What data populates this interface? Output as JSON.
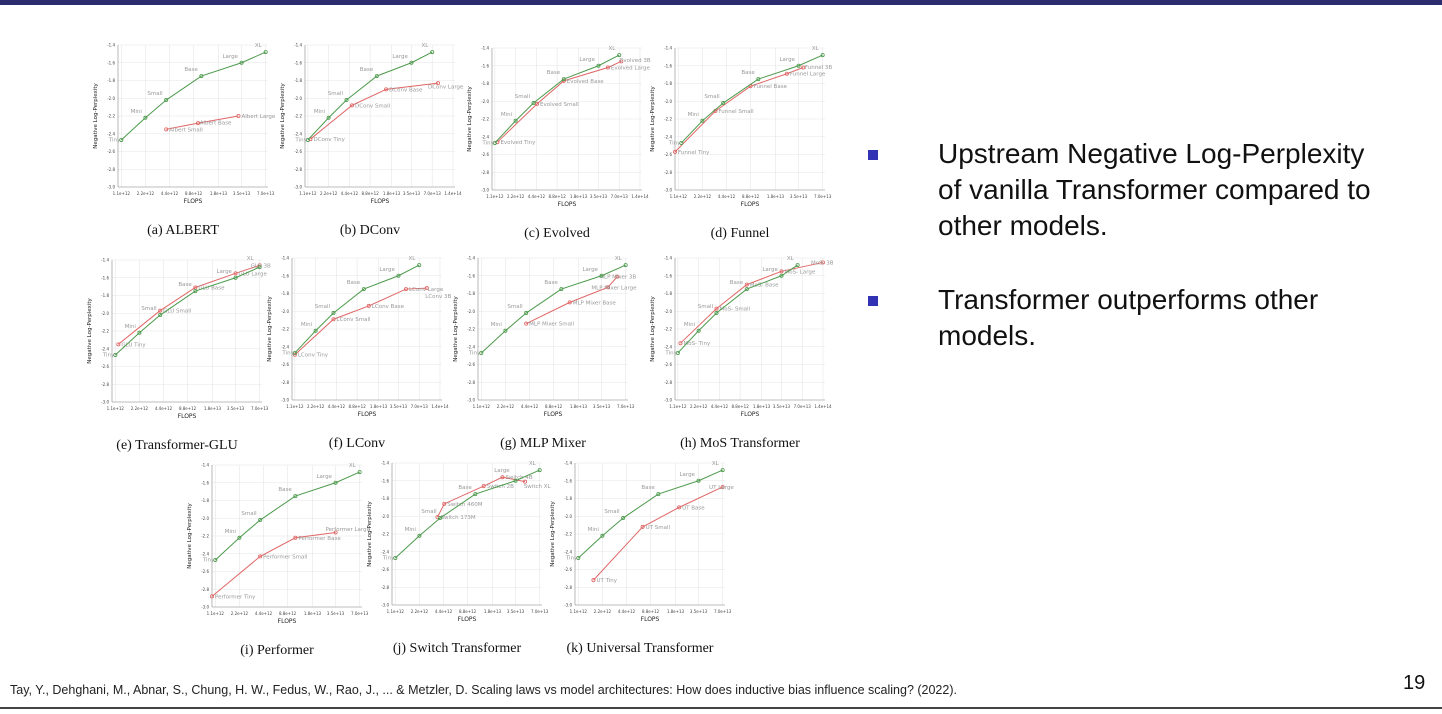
{
  "bullets": [
    "Upstream Negative Log-Perplexity of vanilla Transformer compared to other models.",
    "Transformer outperforms other models."
  ],
  "reference": "Tay, Y., Dehghani, M., Abnar, S., Chung, H. W., Fedus, W., Rao, J., ... & Metzler, D. Scaling laws vs model architectures: How does inductive bias influence scaling? (2022).",
  "page_number": "19",
  "colors": {
    "transformer": "#4c9a4c",
    "model": "#e06666",
    "accent": "#3232b4"
  },
  "chart_data": [
    {
      "type": "line",
      "caption": "(a) ALBERT",
      "xlabel": "FLOPS",
      "ylabel": "Negative Log-Perplexity",
      "ylim": [
        -3.0,
        -1.4
      ],
      "xscale": "log",
      "xticks": [
        "1.1e+12",
        "2.2e+12",
        "4.4e+12",
        "8.8e+12",
        "1.8e+13",
        "3.5e+13",
        "7.0e+13"
      ],
      "series": [
        {
          "name": "Transformer",
          "labels": [
            "Tiny",
            "Mini",
            "Small",
            "Base",
            "Large",
            "XL"
          ],
          "x": [
            1100000000000.0,
            2200000000000.0,
            4000000000000.0,
            11000000000000.0,
            35000000000000.0,
            70000000000000.0
          ],
          "y": [
            -2.47,
            -2.22,
            -2.02,
            -1.75,
            -1.6,
            -1.48
          ]
        },
        {
          "name": "ALBERT",
          "labels": [
            "Albert Small",
            "Albert Base",
            "Albert Large"
          ],
          "x": [
            4000000000000.0,
            10000000000000.0,
            32000000000000.0
          ],
          "y": [
            -2.35,
            -2.28,
            -2.2
          ]
        }
      ]
    },
    {
      "type": "line",
      "caption": "(b) DConv",
      "xlabel": "FLOPS",
      "ylabel": "Negative Log-Perplexity",
      "ylim": [
        -3.0,
        -1.4
      ],
      "xscale": "log",
      "xticks": [
        "1.1e+12",
        "2.2e+12",
        "4.4e+12",
        "8.8e+12",
        "1.8e+13",
        "3.5e+13",
        "7.0e+13",
        "1.4e+14"
      ],
      "series": [
        {
          "name": "Transformer",
          "labels": [
            "Tiny",
            "Mini",
            "Small",
            "Base",
            "Large",
            "XL"
          ],
          "x": [
            1100000000000.0,
            2200000000000.0,
            4000000000000.0,
            11000000000000.0,
            35000000000000.0,
            70000000000000.0
          ],
          "y": [
            -2.47,
            -2.22,
            -2.02,
            -1.75,
            -1.6,
            -1.48
          ]
        },
        {
          "name": "DConv",
          "labels": [
            "DConv Tiny",
            "DConv Small",
            "DConv Base",
            "DConv Large"
          ],
          "x": [
            1200000000000.0,
            4800000000000.0,
            15000000000000.0,
            85000000000000.0
          ],
          "y": [
            -2.46,
            -2.08,
            -1.9,
            -1.83
          ]
        }
      ]
    },
    {
      "type": "line",
      "caption": "(c) Evolved",
      "xlabel": "FLOPS",
      "ylabel": "Negative Log-Perplexity",
      "ylim": [
        -3.0,
        -1.4
      ],
      "xscale": "log",
      "xticks": [
        "1.1e+12",
        "2.2e+12",
        "4.4e+12",
        "8.8e+12",
        "1.8e+13",
        "3.5e+13",
        "7.0e+13",
        "1.4e+14"
      ],
      "series": [
        {
          "name": "Transformer",
          "labels": [
            "Tiny",
            "Mini",
            "Small",
            "Base",
            "Large",
            "XL"
          ],
          "x": [
            1100000000000.0,
            2200000000000.0,
            4000000000000.0,
            11000000000000.0,
            35000000000000.0,
            70000000000000.0
          ],
          "y": [
            -2.47,
            -2.22,
            -2.02,
            -1.75,
            -1.6,
            -1.48
          ]
        },
        {
          "name": "Evolved",
          "labels": [
            "Evolved Tiny",
            "Evolved Small",
            "Evolved Base",
            "Evolved Large",
            "Evolved 3B"
          ],
          "x": [
            1200000000000.0,
            4500000000000.0,
            11000000000000.0,
            48000000000000.0,
            75000000000000.0
          ],
          "y": [
            -2.46,
            -2.03,
            -1.77,
            -1.62,
            -1.55
          ]
        }
      ]
    },
    {
      "type": "line",
      "caption": "(d) Funnel",
      "xlabel": "FLOPS",
      "ylabel": "Negative Log-Perplexity",
      "ylim": [
        -3.0,
        -1.4
      ],
      "xscale": "log",
      "xticks": [
        "1.1e+12",
        "2.2e+12",
        "4.4e+12",
        "8.8e+12",
        "1.8e+13",
        "3.5e+13",
        "7.0e+13"
      ],
      "series": [
        {
          "name": "Transformer",
          "labels": [
            "Tiny",
            "Mini",
            "Small",
            "Base",
            "Large",
            "XL"
          ],
          "x": [
            1200000000000.0,
            2200000000000.0,
            4000000000000.0,
            11000000000000.0,
            35000000000000.0,
            70000000000000.0
          ],
          "y": [
            -2.47,
            -2.22,
            -2.02,
            -1.75,
            -1.6,
            -1.48
          ]
        },
        {
          "name": "Funnel",
          "labels": [
            "Funnel Tiny",
            "Funnel Small",
            "Funnel Base",
            "Funnel Large",
            "Funnel 3B"
          ],
          "x": [
            1000000000000.0,
            3200000000000.0,
            8800000000000.0,
            25000000000000.0,
            40000000000000.0
          ],
          "y": [
            -2.57,
            -2.11,
            -1.83,
            -1.69,
            -1.62
          ]
        }
      ]
    },
    {
      "type": "line",
      "caption": "(e) Transformer-GLU",
      "xlabel": "FLOPS",
      "ylabel": "Negative Log-Perplexity",
      "ylim": [
        -3.0,
        -1.4
      ],
      "xscale": "log",
      "xticks": [
        "1.1e+12",
        "2.2e+12",
        "4.4e+12",
        "8.8e+12",
        "1.8e+13",
        "3.5e+13",
        "7.0e+13"
      ],
      "series": [
        {
          "name": "Transformer",
          "labels": [
            "Tiny",
            "Mini",
            "Small",
            "Base",
            "Large",
            "XL"
          ],
          "x": [
            1100000000000.0,
            2200000000000.0,
            4000000000000.0,
            11000000000000.0,
            35000000000000.0,
            70000000000000.0
          ],
          "y": [
            -2.47,
            -2.22,
            -2.02,
            -1.75,
            -1.6,
            -1.48
          ]
        },
        {
          "name": "GLU",
          "labels": [
            "GLU Tiny",
            "GLU Small",
            "GLU Base",
            "GLU Large",
            "GLU 3B"
          ],
          "x": [
            1200000000000.0,
            4000000000000.0,
            11000000000000.0,
            35000000000000.0,
            70000000000000.0
          ],
          "y": [
            -2.35,
            -1.97,
            -1.71,
            -1.55,
            -1.46
          ]
        }
      ]
    },
    {
      "type": "line",
      "caption": "(f) LConv",
      "xlabel": "FLOPS",
      "ylabel": "Negative Log-Perplexity",
      "ylim": [
        -3.0,
        -1.4
      ],
      "xscale": "log",
      "xticks": [
        "1.1e+12",
        "2.2e+12",
        "4.4e+12",
        "8.8e+12",
        "1.8e+13",
        "3.5e+13",
        "7.0e+13",
        "1.4e+14"
      ],
      "series": [
        {
          "name": "Transformer",
          "labels": [
            "Tiny",
            "Mini",
            "Small",
            "Base",
            "Large",
            "XL"
          ],
          "x": [
            1100000000000.0,
            2200000000000.0,
            4000000000000.0,
            11000000000000.0,
            35000000000000.0,
            70000000000000.0
          ],
          "y": [
            -2.47,
            -2.22,
            -2.02,
            -1.75,
            -1.6,
            -1.48
          ]
        },
        {
          "name": "LConv",
          "labels": [
            "LConv Tiny",
            "LConv Small",
            "LConv Base",
            "LConv Large",
            "LConv 3B"
          ],
          "x": [
            1100000000000.0,
            4000000000000.0,
            13000000000000.0,
            45000000000000.0,
            90000000000000.0
          ],
          "y": [
            -2.49,
            -2.09,
            -1.94,
            -1.75,
            -1.74
          ]
        }
      ]
    },
    {
      "type": "line",
      "caption": "(g) MLP Mixer",
      "xlabel": "FLOPS",
      "ylabel": "Negative Log-Perplexity",
      "ylim": [
        -3.0,
        -1.4
      ],
      "xscale": "log",
      "xticks": [
        "1.1e+12",
        "2.2e+12",
        "4.4e+12",
        "8.8e+12",
        "1.8e+13",
        "3.5e+13",
        "7.0e+13"
      ],
      "series": [
        {
          "name": "Transformer",
          "labels": [
            "Tiny",
            "Mini",
            "Small",
            "Base",
            "Large",
            "XL"
          ],
          "x": [
            1100000000000.0,
            2200000000000.0,
            4000000000000.0,
            11000000000000.0,
            35000000000000.0,
            70000000000000.0
          ],
          "y": [
            -2.47,
            -2.22,
            -2.02,
            -1.75,
            -1.6,
            -1.48
          ]
        },
        {
          "name": "MLP Mixer",
          "labels": [
            "MLP Mixer Small",
            "MLP Mixer Base",
            "MLP Mixer Large",
            "MLP Mixer 3B"
          ],
          "x": [
            4000000000000.0,
            14000000000000.0,
            42000000000000.0,
            55000000000000.0
          ],
          "y": [
            -2.14,
            -1.9,
            -1.73,
            -1.61
          ]
        }
      ]
    },
    {
      "type": "line",
      "caption": "(h) MoS Transformer",
      "xlabel": "FLOPS",
      "ylabel": "Negative Log-Perplexity",
      "ylim": [
        -3.0,
        -1.4
      ],
      "xscale": "log",
      "xticks": [
        "1.1e+12",
        "2.2e+12",
        "4.4e+12",
        "8.8e+12",
        "1.8e+13",
        "3.5e+13",
        "7.0e+13",
        "1.4e+14"
      ],
      "series": [
        {
          "name": "Transformer",
          "labels": [
            "Tiny",
            "Mini",
            "Small",
            "Base",
            "Large",
            "XL"
          ],
          "x": [
            1100000000000.0,
            2200000000000.0,
            4000000000000.0,
            11000000000000.0,
            35000000000000.0,
            60000000000000.0
          ],
          "y": [
            -2.47,
            -2.22,
            -2.02,
            -1.75,
            -1.6,
            -1.48
          ]
        },
        {
          "name": "MoS",
          "labels": [
            "MoS- Tiny",
            "MoS- Small",
            "MoS- Base",
            "MoS- Large",
            "MoS- 3B"
          ],
          "x": [
            1200000000000.0,
            4000000000000.0,
            11000000000000.0,
            35000000000000.0,
            140000000000000.0
          ],
          "y": [
            -2.36,
            -1.97,
            -1.7,
            -1.55,
            -1.45
          ]
        }
      ]
    },
    {
      "type": "line",
      "caption": "(i) Performer",
      "xlabel": "FLOPS",
      "ylabel": "Negative Log-Perplexity",
      "ylim": [
        -3.0,
        -1.4
      ],
      "xscale": "log",
      "xticks": [
        "1.1e+12",
        "2.2e+12",
        "4.4e+12",
        "8.8e+12",
        "1.8e+13",
        "3.5e+13",
        "7.0e+13"
      ],
      "series": [
        {
          "name": "Transformer",
          "labels": [
            "Tiny",
            "Mini",
            "Small",
            "Base",
            "Large",
            "XL"
          ],
          "x": [
            1100000000000.0,
            2200000000000.0,
            4000000000000.0,
            11000000000000.0,
            35000000000000.0,
            70000000000000.0
          ],
          "y": [
            -2.47,
            -2.22,
            -2.02,
            -1.75,
            -1.6,
            -1.48
          ]
        },
        {
          "name": "Performer",
          "labels": [
            "Performer Tiny",
            "Performer Small",
            "Performer Base",
            "Performer Large"
          ],
          "x": [
            1000000000000.0,
            4000000000000.0,
            11000000000000.0,
            35000000000000.0
          ],
          "y": [
            -2.88,
            -2.43,
            -2.22,
            -2.16
          ]
        }
      ]
    },
    {
      "type": "line",
      "caption": "(j) Switch Transformer",
      "xlabel": "FLOPS",
      "ylabel": "Negative Log-Perplexity",
      "ylim": [
        -3.0,
        -1.4
      ],
      "xscale": "log",
      "xticks": [
        "1.1e+12",
        "2.2e+12",
        "4.4e+12",
        "8.8e+12",
        "1.8e+13",
        "3.5e+13",
        "7.0e+13"
      ],
      "series": [
        {
          "name": "Transformer",
          "labels": [
            "Tiny",
            "Mini",
            "Small",
            "Base",
            "Large",
            "XL"
          ],
          "x": [
            1100000000000.0,
            2200000000000.0,
            4000000000000.0,
            11000000000000.0,
            35000000000000.0,
            70000000000000.0
          ],
          "y": [
            -2.47,
            -2.22,
            -2.02,
            -1.75,
            -1.6,
            -1.48
          ]
        },
        {
          "name": "Switch",
          "labels": [
            "Switch 173M",
            "Switch 460M",
            "Switch 2B",
            "Switch 4B",
            "Switch XL"
          ],
          "x": [
            3700000000000.0,
            4500000000000.0,
            14000000000000.0,
            24000000000000.0,
            46000000000000.0
          ],
          "y": [
            -2.01,
            -1.86,
            -1.66,
            -1.56,
            -1.61
          ]
        }
      ]
    },
    {
      "type": "line",
      "caption": "(k) Universal Transformer",
      "xlabel": "FLOPS",
      "ylabel": "Negative Log-Perplexity",
      "ylim": [
        -3.0,
        -1.4
      ],
      "xscale": "log",
      "xticks": [
        "1.1e+12",
        "2.2e+12",
        "4.4e+12",
        "8.8e+12",
        "1.8e+13",
        "3.5e+13",
        "7.0e+13"
      ],
      "series": [
        {
          "name": "Transformer",
          "labels": [
            "Tiny",
            "Mini",
            "Small",
            "Base",
            "Large",
            "XL"
          ],
          "x": [
            1100000000000.0,
            2200000000000.0,
            4000000000000.0,
            11000000000000.0,
            35000000000000.0,
            70000000000000.0
          ],
          "y": [
            -2.47,
            -2.22,
            -2.02,
            -1.75,
            -1.6,
            -1.48
          ]
        },
        {
          "name": "UT",
          "labels": [
            "UT Tiny",
            "UT Small",
            "UT Base",
            "UT Large"
          ],
          "x": [
            1700000000000.0,
            7000000000000.0,
            20000000000000.0,
            70000000000000.0
          ],
          "y": [
            -2.72,
            -2.12,
            -1.9,
            -1.67
          ]
        }
      ]
    }
  ]
}
